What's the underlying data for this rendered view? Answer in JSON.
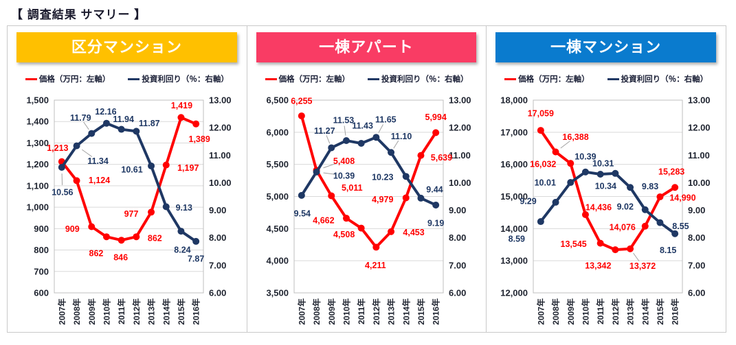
{
  "page": {
    "title": "【 調査結果 サマリー 】"
  },
  "colors": {
    "price_line": "#FF0000",
    "yield_line": "#1F3864",
    "grid": "#D9D9D9",
    "plot_border": "#BFBFBF",
    "panel_border": "#C9C9C9",
    "axis_text": "#1F2430",
    "leader": "#A0A0A0"
  },
  "chart_data": [
    {
      "type": "line",
      "title": "区分マンション",
      "title_bg": "#FFC000",
      "legend_position": "top",
      "grid": true,
      "legend": [
        {
          "label": "価格（万円：左軸）",
          "color": "#FF0000"
        },
        {
          "label": "投資利回り（％：右軸）",
          "color": "#1F3864"
        }
      ],
      "x": [
        "2007年",
        "2008年",
        "2009年",
        "2010年",
        "2011年",
        "2012年",
        "2013年",
        "2014年",
        "2015年",
        "2016年"
      ],
      "left_axis": {
        "min": 600,
        "max": 1500,
        "ticks": [
          "1,500",
          "1,400",
          "1,300",
          "1,200",
          "1,100",
          "1,000",
          "900",
          "800",
          "700",
          "600"
        ]
      },
      "right_axis": {
        "min": 6,
        "max": 13,
        "ticks": [
          "13.00",
          "12.00",
          "11.00",
          "10.00",
          "9.00",
          "8.00",
          "7.00",
          "6.00"
        ]
      },
      "series": [
        {
          "name": "価格（万円：左軸）",
          "axis": "left",
          "color": "#FF0000",
          "values": [
            1213,
            1124,
            909,
            862,
            846,
            862,
            977,
            1197,
            1419,
            1389
          ],
          "labels": [
            "1,213",
            "1,124",
            "909",
            "862",
            "846",
            "862",
            "977",
            "1,197",
            "1,419",
            "1,389"
          ],
          "label_offsets": [
            [
              -6,
              -20,
              0
            ],
            [
              33,
              -1,
              0
            ],
            [
              -28,
              3,
              0
            ],
            [
              -15,
              24,
              0
            ],
            [
              -1,
              25,
              0
            ],
            [
              27,
              2,
              0
            ],
            [
              -29,
              2,
              0
            ],
            [
              32,
              4,
              0
            ],
            [
              1,
              -18,
              0
            ],
            [
              5,
              22,
              0
            ]
          ]
        },
        {
          "name": "投資利回り（％：右軸）",
          "axis": "right",
          "color": "#1F3864",
          "values": [
            10.56,
            11.34,
            11.79,
            12.16,
            11.94,
            11.87,
            10.61,
            9.13,
            8.24,
            7.87
          ],
          "labels": [
            "10.56",
            "11.34",
            "11.79",
            "12.16",
            "11.94",
            "11.87",
            "10.61",
            "9.13",
            "8.24",
            "7.87"
          ],
          "label_offsets": [
            [
              1,
              36,
              1
            ],
            [
              31,
              22,
              1
            ],
            [
              -16,
              -23,
              1
            ],
            [
              -1,
              -17,
              0
            ],
            [
              3,
              -15,
              0
            ],
            [
              19,
              -12,
              0
            ],
            [
              -28,
              5,
              0
            ],
            [
              26,
              1,
              0
            ],
            [
              2,
              27,
              0
            ],
            [
              0,
              25,
              0
            ]
          ]
        }
      ]
    },
    {
      "type": "line",
      "title": "一棟アパート",
      "title_bg": "#F93C64",
      "legend_position": "top",
      "grid": true,
      "legend": [
        {
          "label": "価格（万円：左軸）",
          "color": "#FF0000"
        },
        {
          "label": "投資利回り（％：右軸）",
          "color": "#1F3864"
        }
      ],
      "x": [
        "2007年",
        "2008年",
        "2009年",
        "2010年",
        "2011年",
        "2012年",
        "2013年",
        "2014年",
        "2015年",
        "2016年"
      ],
      "left_axis": {
        "min": 3500,
        "max": 6500,
        "ticks": [
          "6,500",
          "6,000",
          "5,500",
          "5,000",
          "4,500",
          "4,000",
          "3,500"
        ]
      },
      "right_axis": {
        "min": 6,
        "max": 13,
        "ticks": [
          "13.00",
          "12.00",
          "11.00",
          "10.00",
          "9.00",
          "8.00",
          "7.00",
          "6.00"
        ]
      },
      "series": [
        {
          "name": "価格（万円：左軸）",
          "axis": "left",
          "color": "#FF0000",
          "values": [
            6255,
            5408,
            5011,
            4662,
            4508,
            4211,
            4453,
            4979,
            5639,
            5994
          ],
          "labels": [
            "6,255",
            "5,408",
            "5,011",
            "4,662",
            "4,508",
            "4,211",
            "4,453",
            "4,979",
            "5,639",
            "5,994"
          ],
          "label_offsets": [
            [
              0,
              -22,
              0
            ],
            [
              40,
              -14,
              1
            ],
            [
              30,
              -12,
              0
            ],
            [
              -33,
              3,
              0
            ],
            [
              -25,
              9,
              0
            ],
            [
              -1,
              26,
              0
            ],
            [
              33,
              1,
              0
            ],
            [
              -34,
              2,
              0
            ],
            [
              30,
              3,
              0
            ],
            [
              0,
              -23,
              0
            ]
          ]
        },
        {
          "name": "投資利回り（％：右軸）",
          "axis": "right",
          "color": "#1F3864",
          "values": [
            9.54,
            10.39,
            11.27,
            11.53,
            11.43,
            11.65,
            11.1,
            10.23,
            9.44,
            9.19
          ],
          "labels": [
            "9.54",
            "10.39",
            "11.27",
            "11.53",
            "11.43",
            "11.65",
            "11.10",
            "10.23",
            "9.44",
            "9.19"
          ],
          "label_offsets": [
            [
              1,
              26,
              0
            ],
            [
              40,
              5,
              1
            ],
            [
              -10,
              -25,
              1
            ],
            [
              -4,
              -30,
              1
            ],
            [
              2,
              -26,
              0
            ],
            [
              14,
              -26,
              1
            ],
            [
              15,
              -24,
              1
            ],
            [
              -34,
              1,
              0
            ],
            [
              20,
              -13,
              0
            ],
            [
              0,
              26,
              0
            ]
          ]
        }
      ]
    },
    {
      "type": "line",
      "title": "一棟マンション",
      "title_bg": "#0A7BCE",
      "legend_position": "top",
      "grid": true,
      "legend": [
        {
          "label": "価格（万円：左軸）",
          "color": "#FF0000"
        },
        {
          "label": "投資利回り（％：右軸）",
          "color": "#1F3864"
        }
      ],
      "x": [
        "2007年",
        "2008年",
        "2009年",
        "2010年",
        "2011年",
        "2012年",
        "2013年",
        "2014年",
        "2015年",
        "2016年"
      ],
      "left_axis": {
        "min": 12000,
        "max": 18000,
        "ticks": [
          "18,000",
          "17,000",
          "16,000",
          "15,000",
          "14,000",
          "13,000",
          "12,000"
        ]
      },
      "right_axis": {
        "min": 6,
        "max": 13,
        "ticks": [
          "13.00",
          "12.00",
          "11.00",
          "10.00",
          "9.00",
          "8.00",
          "7.00",
          "6.00"
        ]
      },
      "series": [
        {
          "name": "価格（万円：左軸）",
          "axis": "left",
          "color": "#FF0000",
          "values": [
            17059,
            16388,
            16032,
            14436,
            13545,
            13342,
            13372,
            14076,
            14990,
            15283
          ],
          "labels": [
            "17,059",
            "16,388",
            "16,032",
            "14,436",
            "13,545",
            "13,342",
            "13,372",
            "14,076",
            "14,990",
            "15,283"
          ],
          "label_offsets": [
            [
              0,
              -25,
              0
            ],
            [
              29,
              -22,
              1
            ],
            [
              -40,
              1,
              0
            ],
            [
              19,
              -11,
              0
            ],
            [
              -39,
              1,
              0
            ],
            [
              -25,
              23,
              0
            ],
            [
              18,
              25,
              1
            ],
            [
              -33,
              1,
              0
            ],
            [
              33,
              1,
              0
            ],
            [
              -5,
              -23,
              0
            ]
          ]
        },
        {
          "name": "投資利回り（％：右軸）",
          "axis": "right",
          "color": "#1F3864",
          "values": [
            8.59,
            9.29,
            10.01,
            10.39,
            10.31,
            10.34,
            9.83,
            9.02,
            8.55,
            8.15
          ],
          "labels": [
            "8.59",
            "9.29",
            "10.01",
            "10.39",
            "10.31",
            "10.34",
            "9.83",
            "9.02",
            "8.55",
            "8.15"
          ],
          "label_offsets": [
            [
              -35,
              25,
              0
            ],
            [
              -40,
              -2,
              0
            ],
            [
              -37,
              0,
              0
            ],
            [
              0,
              -23,
              0
            ],
            [
              4,
              -16,
              0
            ],
            [
              -14,
              18,
              0
            ],
            [
              29,
              -2,
              0
            ],
            [
              -29,
              -5,
              0
            ],
            [
              30,
              5,
              0
            ],
            [
              -10,
              24,
              0
            ]
          ]
        }
      ]
    }
  ]
}
